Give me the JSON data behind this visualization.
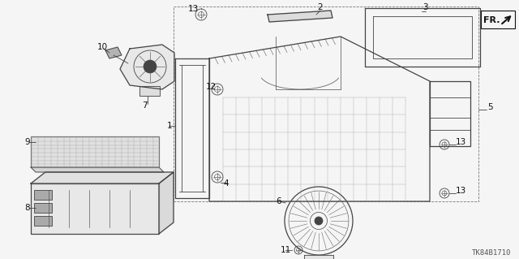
{
  "bg_color": "#f5f5f5",
  "diagram_code": "TK84B1710",
  "figsize": [
    6.4,
    3.19
  ],
  "dpi": 100,
  "lc": "#444444",
  "lc_light": "#888888",
  "lw_main": 0.9,
  "lw_thin": 0.6,
  "lw_thick": 1.2,
  "fs_label": 7.5,
  "fs_code": 6.5
}
